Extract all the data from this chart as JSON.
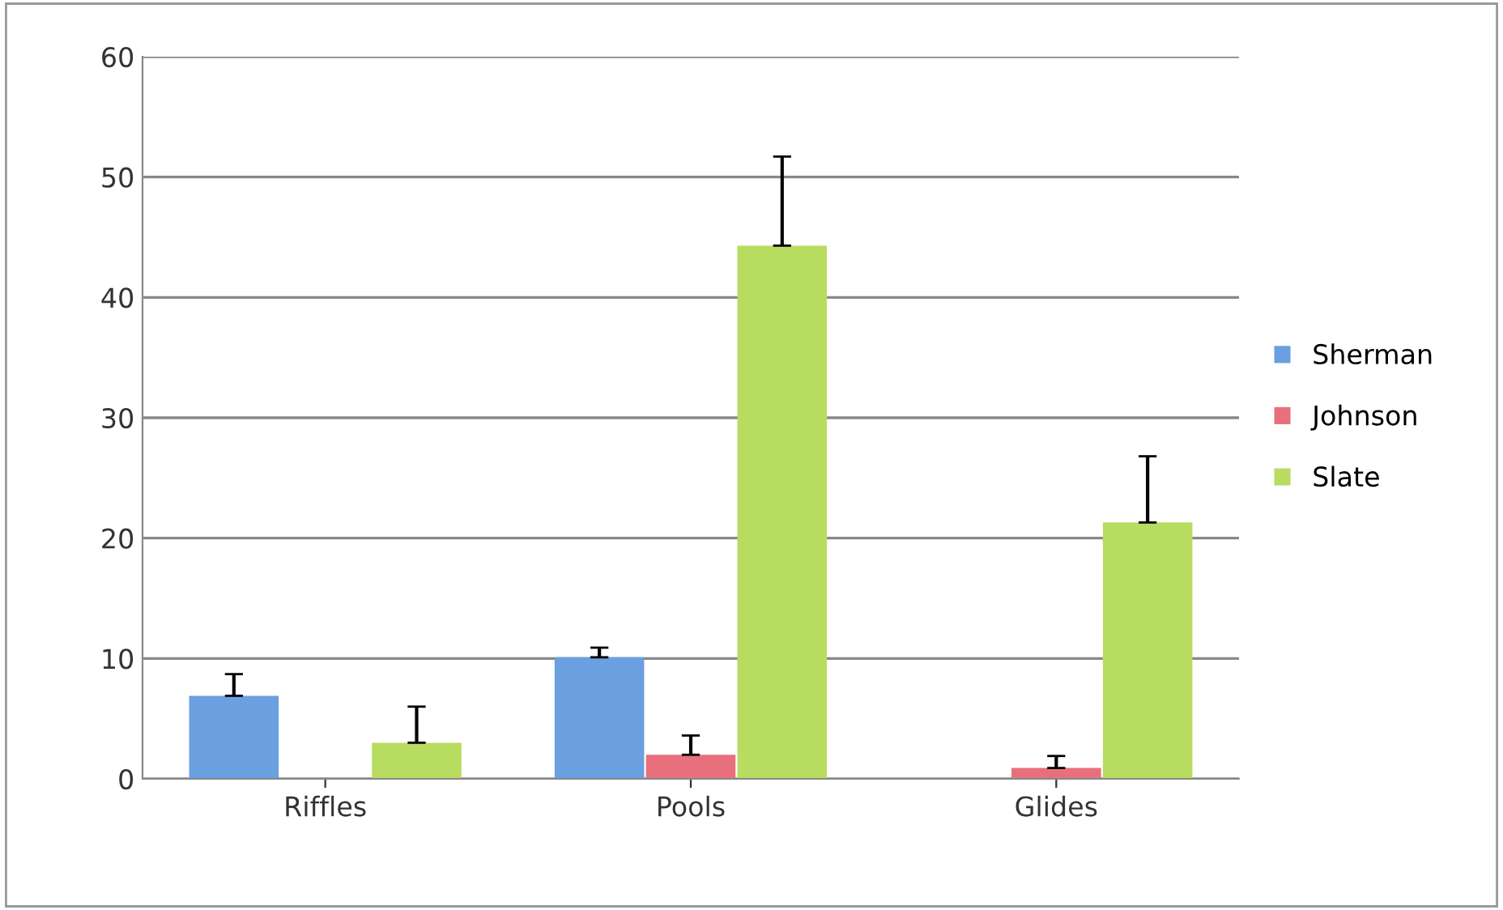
{
  "chart_data": {
    "type": "bar",
    "categories": [
      "Riffles",
      "Pools",
      "Glides"
    ],
    "series": [
      {
        "name": "Sherman",
        "color": "#6a9fe0",
        "values": [
          6.9,
          10.1,
          0
        ],
        "errors": [
          [
            6.9,
            8.7
          ],
          [
            10.1,
            10.9
          ],
          null
        ]
      },
      {
        "name": "Johnson",
        "color": "#e8707c",
        "values": [
          0,
          2.0,
          0.9
        ],
        "errors": [
          null,
          [
            2.0,
            3.6
          ],
          [
            0.9,
            1.9
          ]
        ]
      },
      {
        "name": "Slate",
        "color": "#b8dc60",
        "values": [
          3.0,
          44.3,
          21.3
        ],
        "errors": [
          [
            3.0,
            6.0
          ],
          [
            44.3,
            51.7
          ],
          [
            21.3,
            26.8
          ]
        ]
      }
    ],
    "ylim": [
      0,
      60
    ],
    "yticks": [
      0,
      10,
      20,
      30,
      40,
      50,
      60
    ],
    "grid": "y",
    "legend": "right"
  }
}
